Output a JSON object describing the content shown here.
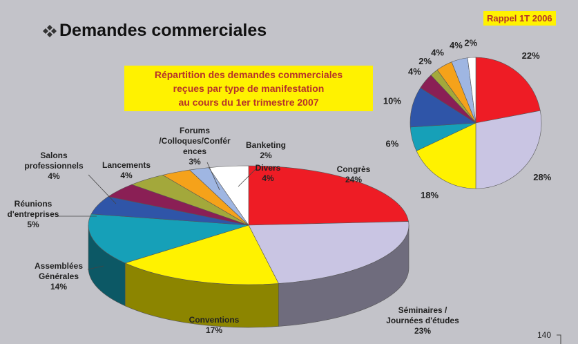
{
  "title": "Demandes commerciales",
  "page_number": "140",
  "chart_data": [
    {
      "type": "pie3d",
      "title": "Répartition des demandes commerciales\nreçues par type de manifestation\nau cours du 1er trimestre 2007",
      "categories": [
        "Congrès",
        "Séminaires /\nJournées d'études",
        "Conventions",
        "Assemblées\nGénérales",
        "Réunions\nd'entreprises",
        "Salons\nprofessionnels",
        "Lancements",
        "Forums\n/Colloques/Confér\nences",
        "Banketing",
        "Divers"
      ],
      "values": [
        24,
        23,
        17,
        14,
        5,
        4,
        4,
        3,
        2,
        4
      ],
      "value_labels": [
        "24%",
        "23%",
        "17%",
        "14%",
        "5%",
        "4%",
        "4%",
        "3%",
        "2%",
        "4%"
      ],
      "colors": [
        "#ee1c25",
        "#c9c5e3",
        "#fff200",
        "#16a0b8",
        "#2f55a8",
        "#8a1f55",
        "#a3a83b",
        "#f5a21a",
        "#9fb6e2",
        "#ffffff"
      ]
    },
    {
      "type": "pie",
      "title": "Rappel 1T 2006",
      "values": [
        22,
        28,
        18,
        6,
        10,
        4,
        2,
        4,
        4,
        2
      ],
      "value_labels": [
        "22%",
        "28%",
        "18%",
        "6%",
        "10%",
        "4%",
        "2%",
        "4%",
        "4%",
        "2%"
      ],
      "colors": [
        "#ee1c25",
        "#c9c5e3",
        "#fff200",
        "#16a0b8",
        "#2f55a8",
        "#8a1f55",
        "#a3a83b",
        "#f5a21a",
        "#9fb6e2",
        "#ffffff"
      ]
    }
  ]
}
